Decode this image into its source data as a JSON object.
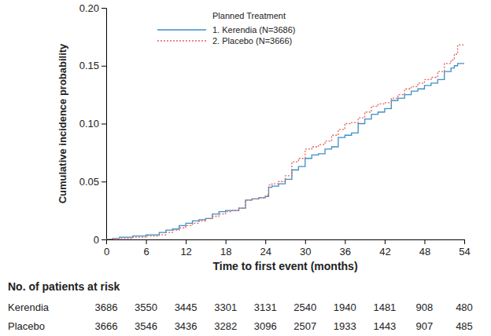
{
  "chart_data": {
    "type": "step",
    "x_label": "Time to first event (months)",
    "y_label": "Cumulative incidence probability",
    "legend_title": "Planned Treatment",
    "legend": "upper left",
    "grid": false,
    "xlim": [
      0,
      54
    ],
    "xticks": [
      0,
      6,
      12,
      18,
      24,
      30,
      36,
      42,
      48,
      54
    ],
    "ylim": [
      0,
      0.2
    ],
    "yticks": [
      0,
      0.05,
      {
        "value": 0.1,
        "label": "0.10"
      },
      0.15,
      {
        "value": 0.2,
        "label": "0.20"
      }
    ],
    "series": [
      {
        "name": "1. Kerendia (N=3686)",
        "color": "#3d8fc6",
        "line_style": "solid",
        "x": [
          0,
          1,
          2,
          4,
          6,
          8,
          9,
          10,
          11,
          12,
          13,
          14,
          15,
          16,
          17,
          18,
          19,
          20,
          21,
          22,
          23,
          24,
          24.5,
          25,
          26,
          27,
          28,
          29,
          30,
          31,
          32,
          33,
          34,
          35,
          36,
          37,
          38,
          39,
          40,
          41,
          42,
          43,
          44,
          45,
          46,
          47,
          48,
          49,
          50,
          51,
          52,
          52.5,
          53,
          54
        ],
        "values": [
          0,
          0.001,
          0.002,
          0.003,
          0.004,
          0.006,
          0.008,
          0.009,
          0.012,
          0.014,
          0.016,
          0.017,
          0.018,
          0.022,
          0.024,
          0.025,
          0.025,
          0.027,
          0.034,
          0.035,
          0.036,
          0.037,
          0.045,
          0.046,
          0.048,
          0.052,
          0.06,
          0.063,
          0.07,
          0.073,
          0.074,
          0.078,
          0.08,
          0.088,
          0.09,
          0.092,
          0.1,
          0.104,
          0.108,
          0.11,
          0.113,
          0.12,
          0.122,
          0.125,
          0.128,
          0.13,
          0.133,
          0.135,
          0.138,
          0.145,
          0.148,
          0.15,
          0.152,
          0.152
        ]
      },
      {
        "name": "2. Placebo (N=3666)",
        "color": "#e0625c",
        "line_style": "dotted",
        "x": [
          0,
          1,
          2,
          4,
          6,
          8,
          9,
          10,
          11,
          12,
          13,
          14,
          15,
          16,
          17,
          18,
          19,
          20,
          21,
          22,
          23,
          24,
          24.5,
          25,
          26,
          27,
          28,
          29,
          30,
          31,
          32,
          33,
          34,
          35,
          36,
          37,
          38,
          39,
          40,
          41,
          42,
          43,
          44,
          45,
          46,
          47,
          48,
          49,
          50,
          51,
          52,
          52.5,
          53,
          54
        ],
        "values": [
          0,
          0.001,
          0.001,
          0.002,
          0.003,
          0.004,
          0.006,
          0.008,
          0.01,
          0.012,
          0.014,
          0.016,
          0.018,
          0.02,
          0.022,
          0.024,
          0.025,
          0.027,
          0.034,
          0.035,
          0.036,
          0.038,
          0.047,
          0.048,
          0.05,
          0.055,
          0.067,
          0.07,
          0.078,
          0.08,
          0.082,
          0.085,
          0.09,
          0.095,
          0.1,
          0.101,
          0.105,
          0.11,
          0.115,
          0.117,
          0.118,
          0.122,
          0.125,
          0.13,
          0.132,
          0.135,
          0.138,
          0.14,
          0.145,
          0.152,
          0.155,
          0.16,
          0.168,
          0.168
        ]
      }
    ]
  },
  "risk_table": {
    "title": "No. of patients at risk",
    "rows": [
      {
        "name": "Kerendia",
        "values": [
          3686,
          3550,
          3445,
          3301,
          3131,
          2540,
          1940,
          1481,
          908,
          480
        ]
      },
      {
        "name": "Placebo",
        "values": [
          3666,
          3546,
          3436,
          3282,
          3096,
          2507,
          1933,
          1443,
          907,
          485
        ]
      }
    ]
  }
}
